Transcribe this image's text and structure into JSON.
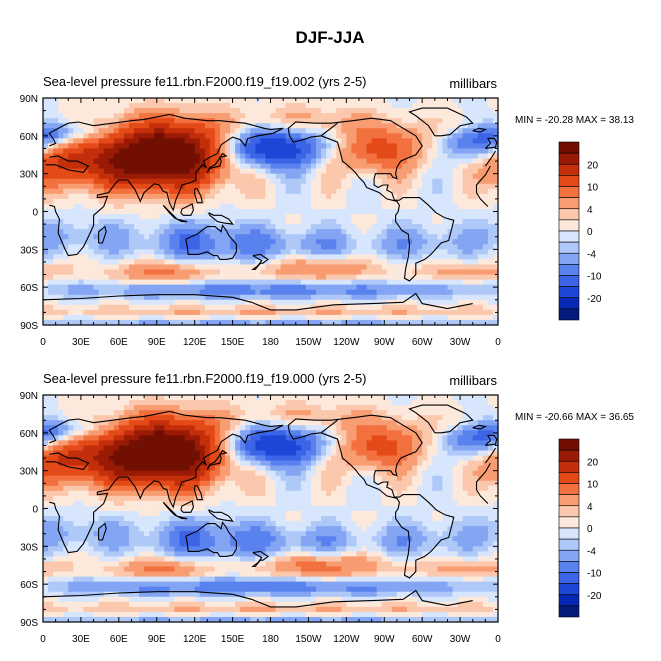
{
  "figure": {
    "title": "DJF-JJA"
  },
  "chart_data": [
    {
      "type": "heatmap",
      "title": "Sea-level pressure",
      "case": "fe11.rbn.F2000.f19_f19.002 (yrs 2-5)",
      "units": "millibars",
      "stats": "MIN = -20.28 MAX =  38.13",
      "xticks": [
        "0",
        "30E",
        "60E",
        "90E",
        "120E",
        "150E",
        "180",
        "150W",
        "120W",
        "90W",
        "60W",
        "30W",
        "0"
      ],
      "yticks": [
        "90N",
        "60N",
        "30N",
        "0",
        "30S",
        "60S",
        "90S"
      ],
      "xlim": [
        0,
        360
      ],
      "ylim": [
        -90,
        90
      ],
      "colorbar_labels": [
        "20",
        "10",
        "4",
        "0",
        "-4",
        "-10",
        "-20"
      ],
      "levels": [
        -25,
        -20,
        -15,
        -10,
        -7,
        -4,
        -2,
        0,
        2,
        4,
        7,
        10,
        15,
        20,
        25
      ],
      "colors": [
        "#061c7c",
        "#0728b4",
        "#1e46d6",
        "#3c64e6",
        "#5a82ee",
        "#83a5f3",
        "#aec8f8",
        "#d7e6fc",
        "#fde8dc",
        "#fbc8ad",
        "#f89c72",
        "#f3703f",
        "#e34a18",
        "#c32e0b",
        "#9a1b05",
        "#700f02"
      ],
      "extremes": {
        "min": -20.28,
        "max": 38.13
      }
    },
    {
      "type": "heatmap",
      "title": "Sea-level pressure",
      "case": "fe11.rbn.F2000.f19_f19.000 (yrs 2-5)",
      "units": "millibars",
      "stats": "MIN = -20.66 MAX =  36.65",
      "xticks": [
        "0",
        "30E",
        "60E",
        "90E",
        "120E",
        "150E",
        "180",
        "150W",
        "120W",
        "90W",
        "60W",
        "30W",
        "0"
      ],
      "yticks": [
        "90N",
        "60N",
        "30N",
        "0",
        "30S",
        "60S",
        "90S"
      ],
      "xlim": [
        0,
        360
      ],
      "ylim": [
        -90,
        90
      ],
      "colorbar_labels": [
        "20",
        "10",
        "4",
        "0",
        "-4",
        "-10",
        "-20"
      ],
      "levels": [
        -25,
        -20,
        -15,
        -10,
        -7,
        -4,
        -2,
        0,
        2,
        4,
        7,
        10,
        15,
        20,
        25
      ],
      "colors": [
        "#061c7c",
        "#0728b4",
        "#1e46d6",
        "#3c64e6",
        "#5a82ee",
        "#83a5f3",
        "#aec8f8",
        "#d7e6fc",
        "#fde8dc",
        "#fbc8ad",
        "#f89c72",
        "#f3703f",
        "#e34a18",
        "#c32e0b",
        "#9a1b05",
        "#700f02"
      ],
      "extremes": {
        "min": -20.66,
        "max": 36.65
      }
    }
  ]
}
